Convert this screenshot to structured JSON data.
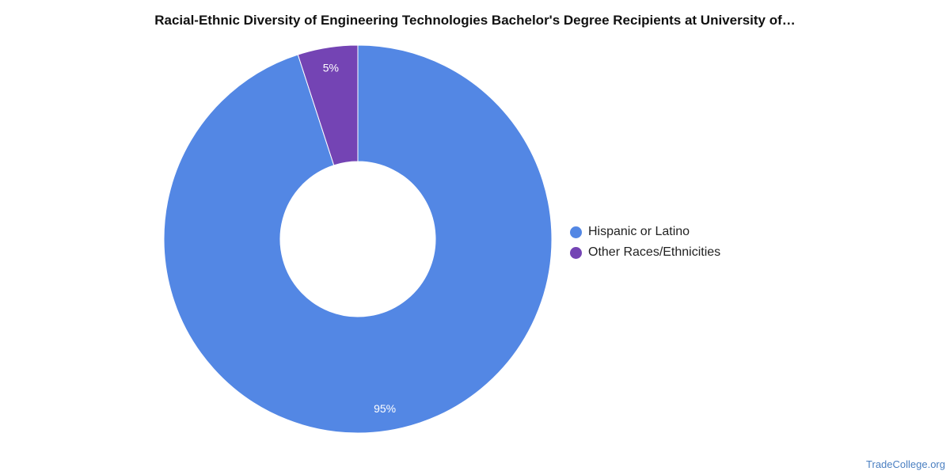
{
  "chart_data": {
    "type": "pie",
    "title": "Racial-Ethnic Diversity of Engineering Technologies Bachelor's Degree Recipients at University of…",
    "categories": [
      "Hispanic or Latino",
      "Other Races/Ethnicities"
    ],
    "values": [
      95,
      5
    ],
    "value_labels": [
      "95%",
      "5%"
    ],
    "colors": [
      "#5387e4",
      "#7444b4"
    ],
    "legend_position": "right",
    "donut": true
  },
  "watermark": "TradeCollege.org"
}
